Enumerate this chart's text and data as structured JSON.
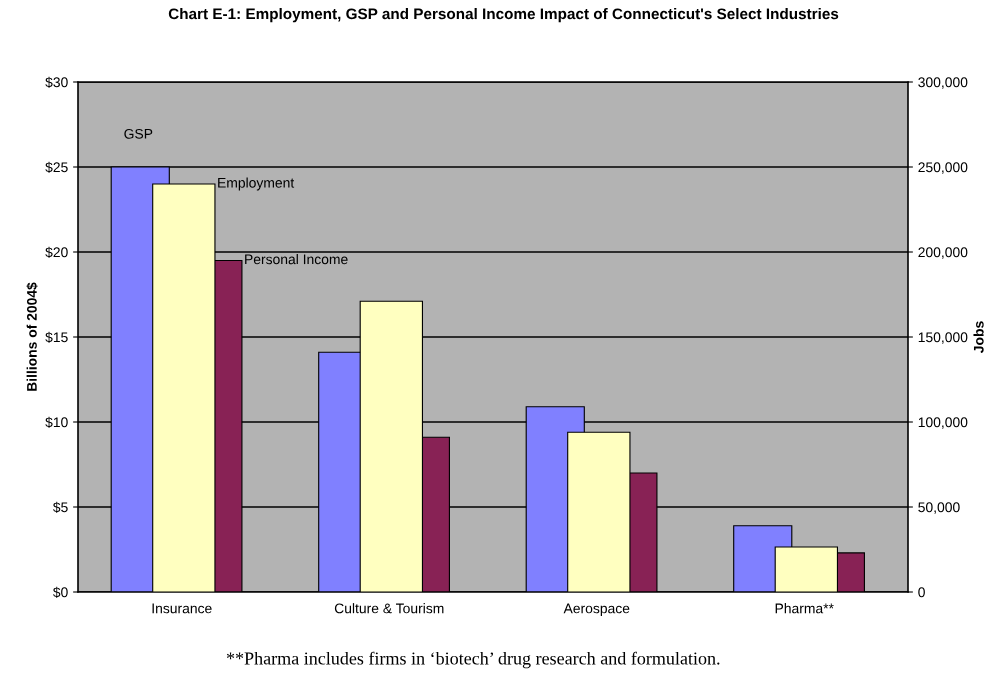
{
  "chart_data": {
    "type": "bar",
    "title": "Chart E-1: Employment, GSP and Personal Income Impact of Connecticut's Select Industries",
    "categories": [
      "Insurance",
      "Culture & Tourism",
      "Aerospace",
      "Pharma**"
    ],
    "series": [
      {
        "name": "GSP",
        "color": "#8080ff",
        "values": [
          25.0,
          14.1,
          10.9,
          3.9
        ]
      },
      {
        "name": "Employment",
        "color": "#ffffc0",
        "values": [
          240000,
          171000,
          94000,
          26500
        ],
        "axis": "y2"
      },
      {
        "name": "Personal Income",
        "color": "#882255",
        "values": [
          19.5,
          9.1,
          7.0,
          2.3
        ]
      }
    ],
    "ylabel": "Billions of 2004$",
    "y2label": "Jobs",
    "ylim": [
      0,
      30
    ],
    "yticks": [
      {
        "value": 0,
        "label": "$0"
      },
      {
        "value": 5,
        "label": "$5"
      },
      {
        "value": 10,
        "label": "$10"
      },
      {
        "value": 15,
        "label": "$15"
      },
      {
        "value": 20,
        "label": "$20"
      },
      {
        "value": 25,
        "label": "$25"
      },
      {
        "value": 30,
        "label": "$30"
      }
    ],
    "y2lim": [
      0,
      300000
    ],
    "y2ticks": [
      0,
      {
        "value": 50000,
        "label": "50,000"
      },
      {
        "value": 100000,
        "label": "100,000"
      },
      {
        "value": 150000,
        "label": "150,000"
      },
      {
        "value": 200000,
        "label": "200,000"
      },
      {
        "value": 250000,
        "label": "250,000"
      },
      {
        "value": 300000,
        "label": "300,000"
      }
    ],
    "grid": "y",
    "legend": false,
    "annotations": [
      "**Pharma includes firms in ‘biotech’ drug research and formulation."
    ]
  }
}
